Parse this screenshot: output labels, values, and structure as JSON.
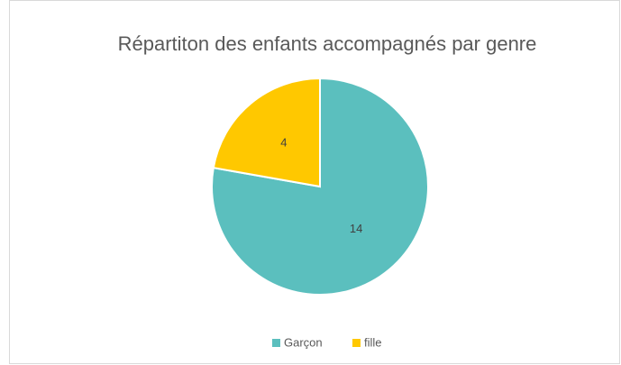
{
  "chart_data": {
    "type": "pie",
    "title": "Répartiton des enfants accompagnés par genre",
    "categories": [
      "Garçon",
      "fille"
    ],
    "values": [
      14,
      4
    ],
    "colors": [
      "#5BBFBE",
      "#FFC800"
    ],
    "legend": "bottom"
  }
}
